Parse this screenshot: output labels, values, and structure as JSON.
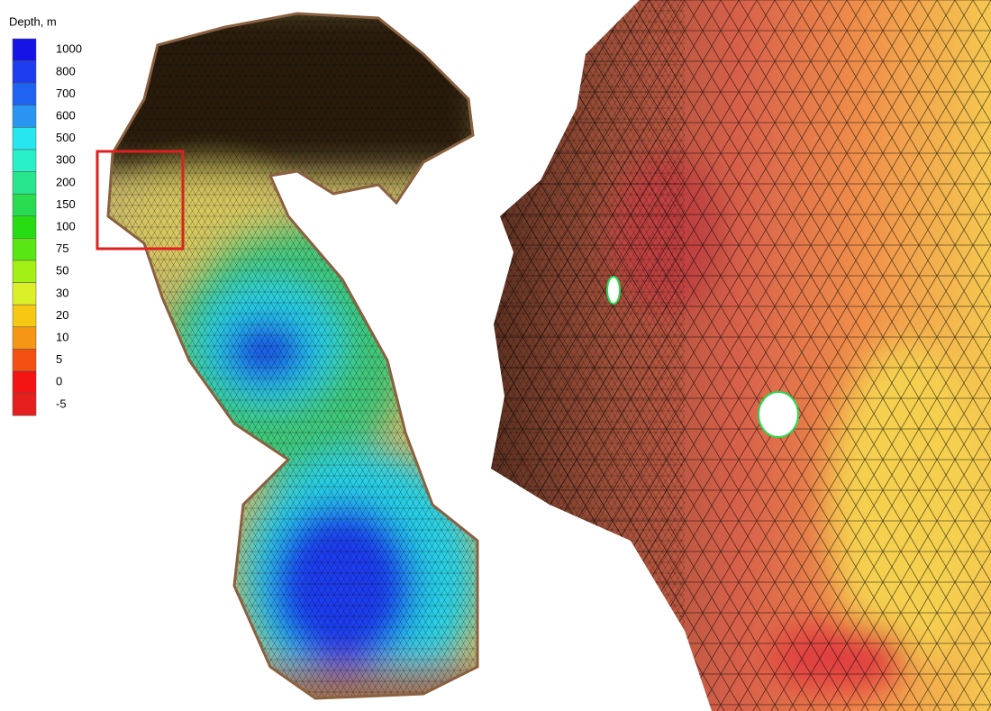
{
  "legend": {
    "title": "Depth, m",
    "entries": [
      {
        "label": 1000,
        "color": "#1414e6"
      },
      {
        "label": 800,
        "color": "#1e3cf0"
      },
      {
        "label": 700,
        "color": "#1e64f0"
      },
      {
        "label": 600,
        "color": "#2896f0"
      },
      {
        "label": 500,
        "color": "#28e6f0"
      },
      {
        "label": 300,
        "color": "#28f0c8"
      },
      {
        "label": 200,
        "color": "#28e68c"
      },
      {
        "label": 150,
        "color": "#28dc50"
      },
      {
        "label": 100,
        "color": "#28dc14"
      },
      {
        "label": 75,
        "color": "#5ae614"
      },
      {
        "label": 50,
        "color": "#a5f014"
      },
      {
        "label": 30,
        "color": "#dcf028"
      },
      {
        "label": 20,
        "color": "#f5c814"
      },
      {
        "label": 10,
        "color": "#f59614"
      },
      {
        "label": 5,
        "color": "#f55014"
      },
      {
        "label": 0,
        "color": "#f51414"
      },
      {
        "label": -5,
        "color": "#e61e1e"
      }
    ]
  }
}
